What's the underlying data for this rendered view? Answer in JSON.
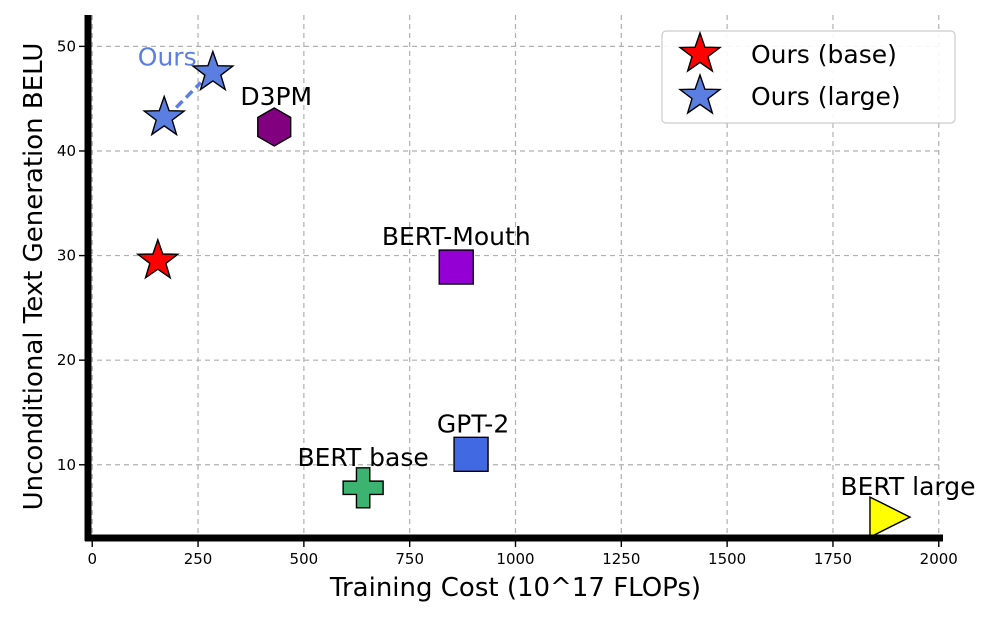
{
  "chart_data": {
    "type": "scatter",
    "title": "",
    "xlabel": "Training Cost (10^17 FLOPs)",
    "ylabel": "Unconditional Text Generation BELU",
    "xlim": [
      -10,
      2010
    ],
    "ylim": [
      3,
      53
    ],
    "xticks": [
      0,
      250,
      500,
      750,
      1000,
      1250,
      1500,
      1750,
      2000
    ],
    "yticks": [
      10,
      20,
      30,
      40,
      50
    ],
    "grid": true,
    "legend_position": "top-right",
    "legend": [
      {
        "label": "Ours (base)",
        "marker": "star",
        "color": "#ff0000"
      },
      {
        "label": "Ours (large)",
        "marker": "star",
        "color": "#5b7fe0"
      }
    ],
    "points": [
      {
        "label": "",
        "x": 155,
        "y": 29.5,
        "marker": "star",
        "color": "#ff0000"
      },
      {
        "label": "",
        "x": 170,
        "y": 43.2,
        "marker": "star",
        "color": "#5b7fe0"
      },
      {
        "label": "",
        "x": 285,
        "y": 47.5,
        "marker": "star",
        "color": "#5b7fe0"
      },
      {
        "label": "D3PM",
        "x": 430,
        "y": 42.3,
        "marker": "hexagon",
        "color": "#800080"
      },
      {
        "label": "BERT-Mouth",
        "x": 860,
        "y": 28.9,
        "marker": "square",
        "color": "#9400d3"
      },
      {
        "label": "GPT-2",
        "x": 895,
        "y": 11.0,
        "marker": "square",
        "color": "#4169e1"
      },
      {
        "label": "BERT base",
        "x": 640,
        "y": 7.8,
        "marker": "plus",
        "color": "#3cb371"
      },
      {
        "label": "BERT large",
        "x": 1880,
        "y": 5.0,
        "marker": "triangle-right",
        "color": "#ffff00"
      }
    ],
    "annotations": [
      {
        "text": "Ours",
        "color": "#5b7fe0"
      }
    ]
  }
}
